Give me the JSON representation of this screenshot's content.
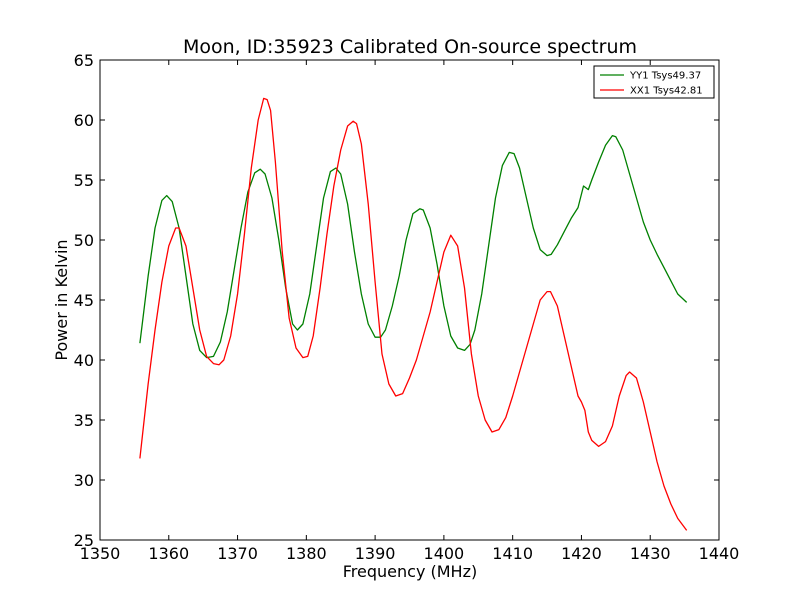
{
  "chart_data": {
    "type": "line",
    "title": "Moon, ID:35923 Calibrated On-source spectrum",
    "xlabel": "Frequency (MHz)",
    "ylabel": "Power in Kelvin",
    "xlim": [
      1350,
      1440
    ],
    "ylim": [
      25,
      65
    ],
    "xticks": [
      "1350",
      "1360",
      "1370",
      "1380",
      "1390",
      "1400",
      "1410",
      "1420",
      "1430",
      "1440"
    ],
    "yticks": [
      "25",
      "30",
      "35",
      "40",
      "45",
      "50",
      "55",
      "60",
      "65"
    ],
    "grid": false,
    "legend_position": "top-right",
    "series": [
      {
        "name": "YY1 Tsys49.37",
        "color": "#008000",
        "x": [
          1355.8,
          1357.0,
          1358.0,
          1359.0,
          1359.7,
          1360.5,
          1361.5,
          1362.5,
          1363.5,
          1364.5,
          1365.5,
          1366.5,
          1367.5,
          1368.5,
          1369.5,
          1370.5,
          1371.5,
          1372.5,
          1373.3,
          1374.0,
          1375.0,
          1376.0,
          1377.0,
          1378.0,
          1378.7,
          1379.5,
          1380.5,
          1381.5,
          1382.5,
          1383.5,
          1384.3,
          1385.0,
          1386.0,
          1387.0,
          1388.0,
          1389.0,
          1390.0,
          1390.8,
          1391.5,
          1392.5,
          1393.5,
          1394.5,
          1395.5,
          1396.5,
          1397.0,
          1398.0,
          1399.0,
          1400.0,
          1401.0,
          1402.0,
          1403.0,
          1403.8,
          1404.5,
          1405.5,
          1406.5,
          1407.5,
          1408.5,
          1409.5,
          1410.2,
          1411.0,
          1412.0,
          1413.0,
          1414.0,
          1415.0,
          1415.6,
          1416.5,
          1417.5,
          1418.5,
          1419.5,
          1420.3,
          1421.0,
          1421.5,
          1422.5,
          1423.5,
          1424.5,
          1425.0,
          1426.0,
          1427.0,
          1428.0,
          1429.0,
          1430.0,
          1431.0,
          1432.0,
          1433.0,
          1434.0,
          1435.3
        ],
        "values": [
          41.4,
          47.0,
          51.0,
          53.3,
          53.7,
          53.2,
          51.0,
          47.0,
          43.0,
          40.8,
          40.2,
          40.3,
          41.5,
          44.0,
          47.5,
          51.0,
          54.0,
          55.6,
          55.9,
          55.5,
          53.5,
          50.0,
          46.0,
          43.0,
          42.5,
          43.0,
          45.5,
          49.5,
          53.5,
          55.7,
          56.0,
          55.5,
          53.0,
          49.0,
          45.5,
          43.0,
          41.9,
          41.9,
          42.5,
          44.5,
          47.0,
          50.0,
          52.2,
          52.6,
          52.5,
          51.0,
          48.0,
          44.5,
          42.0,
          41.0,
          40.8,
          41.3,
          42.5,
          45.5,
          49.5,
          53.5,
          56.2,
          57.3,
          57.2,
          56.0,
          53.5,
          51.0,
          49.2,
          48.7,
          48.8,
          49.6,
          50.7,
          51.8,
          52.7,
          54.5,
          54.2,
          55.0,
          56.5,
          57.9,
          58.7,
          58.6,
          57.5,
          55.5,
          53.5,
          51.5,
          50.0,
          48.8,
          47.7,
          46.6,
          45.5,
          44.8
        ]
      },
      {
        "name": "XX1 Tsys42.81",
        "color": "#ff0000",
        "x": [
          1355.8,
          1357.0,
          1358.0,
          1359.0,
          1360.0,
          1361.0,
          1361.5,
          1362.5,
          1363.5,
          1364.5,
          1365.5,
          1366.5,
          1367.3,
          1368.0,
          1369.0,
          1370.0,
          1371.0,
          1372.0,
          1373.0,
          1373.8,
          1374.3,
          1374.8,
          1375.5,
          1376.5,
          1377.5,
          1378.5,
          1379.5,
          1380.2,
          1381.0,
          1382.0,
          1383.0,
          1384.0,
          1385.0,
          1386.0,
          1386.8,
          1387.3,
          1388.0,
          1389.0,
          1390.0,
          1391.0,
          1392.0,
          1393.0,
          1394.0,
          1395.0,
          1396.0,
          1397.0,
          1398.0,
          1399.0,
          1400.0,
          1401.0,
          1402.0,
          1403.0,
          1404.0,
          1405.0,
          1406.0,
          1407.0,
          1408.0,
          1409.0,
          1410.0,
          1411.0,
          1412.0,
          1413.0,
          1414.0,
          1415.0,
          1415.5,
          1416.5,
          1417.5,
          1418.5,
          1419.5,
          1420.0,
          1420.5,
          1421.0,
          1421.5,
          1422.5,
          1423.5,
          1424.5,
          1425.5,
          1426.5,
          1427.0,
          1428.0,
          1429.0,
          1430.0,
          1431.0,
          1432.0,
          1433.0,
          1434.0,
          1435.3
        ],
        "values": [
          31.8,
          38.0,
          42.5,
          46.5,
          49.5,
          51.0,
          51.0,
          49.5,
          46.0,
          42.5,
          40.3,
          39.7,
          39.6,
          40.0,
          42.0,
          45.5,
          50.5,
          56.0,
          60.0,
          61.8,
          61.7,
          60.8,
          56.5,
          49.0,
          43.5,
          41.0,
          40.2,
          40.3,
          42.0,
          46.0,
          50.5,
          54.5,
          57.5,
          59.5,
          59.9,
          59.7,
          58.0,
          53.0,
          46.5,
          40.5,
          38.0,
          37.0,
          37.2,
          38.5,
          40.0,
          42.0,
          44.0,
          46.5,
          49.0,
          50.4,
          49.5,
          46.0,
          40.5,
          37.0,
          35.0,
          34.0,
          34.2,
          35.2,
          37.0,
          39.0,
          41.0,
          43.0,
          45.0,
          45.7,
          45.7,
          44.5,
          42.0,
          39.5,
          37.0,
          36.5,
          35.8,
          34.0,
          33.3,
          32.8,
          33.2,
          34.5,
          37.0,
          38.7,
          39.0,
          38.5,
          36.5,
          34.0,
          31.5,
          29.5,
          28.0,
          26.8,
          25.8
        ]
      }
    ]
  }
}
